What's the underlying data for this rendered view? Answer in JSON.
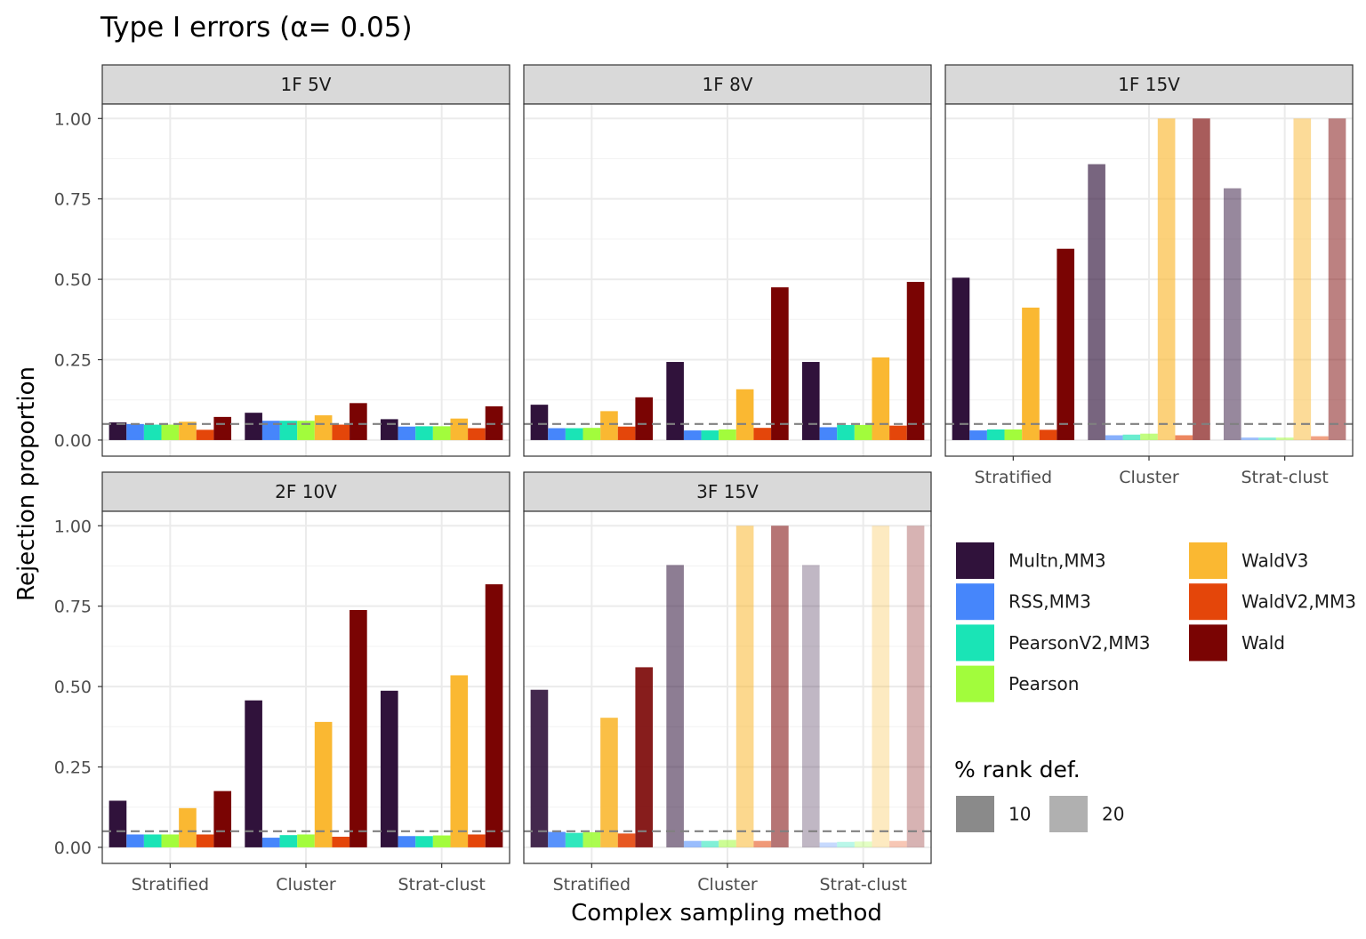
{
  "chart_data": {
    "type": "bar",
    "title": "Type I errors (α= 0.05)",
    "xlabel": "Complex sampling method",
    "ylabel": "Rejection proportion",
    "ylim": [
      0,
      1.05
    ],
    "yticks": [
      0,
      0.25,
      0.5,
      0.75,
      1.0
    ],
    "ytick_labels": [
      "0.00",
      "0.25",
      "0.50",
      "0.75",
      "1.00"
    ],
    "reference_line": 0.05,
    "grid": true,
    "categories": [
      "Stratified",
      "Cluster",
      "Strat-clust"
    ],
    "series_names": [
      "Multn,MM3",
      "RSS,MM3",
      "PearsonV2,MM3",
      "Pearson",
      "WaldV3",
      "WaldV2,MM3",
      "Wald"
    ],
    "series_colors": [
      "#30123b",
      "#4686fb",
      "#1ae4b6",
      "#a2fc3c",
      "#fab832",
      "#e4460a",
      "#7a0403"
    ],
    "rank_def_legend": {
      "title": "% rank def.",
      "levels": [
        "10",
        "20"
      ],
      "colors": [
        "#8a8a8a",
        "#b0b0b0"
      ]
    },
    "panels": [
      {
        "label": "1F 5V",
        "alpha": [
          1,
          1,
          1
        ],
        "values": [
          [
            0.055,
            0.05,
            0.048,
            0.048,
            0.057,
            0.032,
            0.072
          ],
          [
            0.085,
            0.06,
            0.06,
            0.06,
            0.077,
            0.048,
            0.115
          ],
          [
            0.065,
            0.042,
            0.043,
            0.043,
            0.067,
            0.037,
            0.105
          ]
        ]
      },
      {
        "label": "1F 8V",
        "alpha": [
          1,
          1,
          1
        ],
        "values": [
          [
            0.11,
            0.037,
            0.037,
            0.038,
            0.09,
            0.042,
            0.133
          ],
          [
            0.243,
            0.03,
            0.03,
            0.033,
            0.158,
            0.038,
            0.475
          ],
          [
            0.243,
            0.04,
            0.047,
            0.047,
            0.257,
            0.045,
            0.492
          ]
        ]
      },
      {
        "label": "1F 15V",
        "alpha": [
          1,
          0.65,
          0.5
        ],
        "values": [
          [
            0.505,
            0.03,
            0.033,
            0.033,
            0.412,
            0.032,
            0.595
          ],
          [
            0.858,
            0.015,
            0.017,
            0.02,
            1.0,
            0.015,
            1.0
          ],
          [
            0.783,
            0.008,
            0.008,
            0.008,
            1.0,
            0.012,
            1.0
          ]
        ]
      },
      {
        "label": "2F 10V",
        "alpha": [
          1,
          1,
          1
        ],
        "values": [
          [
            0.145,
            0.04,
            0.04,
            0.04,
            0.122,
            0.04,
            0.175
          ],
          [
            0.457,
            0.03,
            0.038,
            0.04,
            0.39,
            0.033,
            0.738
          ],
          [
            0.487,
            0.035,
            0.035,
            0.037,
            0.535,
            0.04,
            0.818
          ]
        ]
      },
      {
        "label": "3F 15V",
        "alpha": [
          0.9,
          0.55,
          0.3
        ],
        "values": [
          [
            0.49,
            0.048,
            0.045,
            0.047,
            0.403,
            0.043,
            0.56
          ],
          [
            0.878,
            0.02,
            0.02,
            0.023,
            1.0,
            0.02,
            1.0
          ],
          [
            0.878,
            0.015,
            0.017,
            0.018,
            1.0,
            0.02,
            1.0
          ]
        ]
      }
    ]
  }
}
